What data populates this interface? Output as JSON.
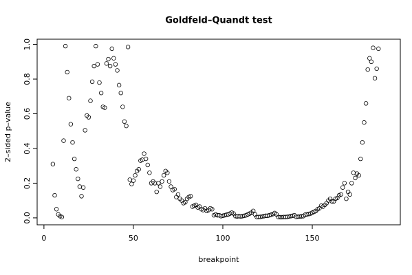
{
  "chart_data": {
    "type": "scatter",
    "title": "Goldfeld–Quandt test",
    "xlabel": "breakpoint",
    "ylabel": "2–sided p–value",
    "x": [
      5,
      6,
      7,
      8,
      9,
      10,
      11,
      12,
      13,
      14,
      15,
      16,
      17,
      18,
      19,
      20,
      21,
      22,
      23,
      24,
      25,
      26,
      27,
      28,
      29,
      30,
      31,
      32,
      33,
      34,
      35,
      36,
      37,
      38,
      39,
      40,
      41,
      42,
      43,
      44,
      45,
      46,
      47,
      48,
      49,
      50,
      51,
      52,
      53,
      54,
      55,
      56,
      57,
      58,
      59,
      60,
      61,
      62,
      63,
      64,
      65,
      66,
      67,
      68,
      69,
      70,
      71,
      72,
      73,
      74,
      75,
      76,
      77,
      78,
      79,
      80,
      81,
      82,
      83,
      84,
      85,
      86,
      87,
      88,
      89,
      90,
      91,
      92,
      93,
      94,
      95,
      96,
      97,
      98,
      99,
      100,
      101,
      102,
      103,
      104,
      105,
      106,
      107,
      108,
      109,
      110,
      111,
      112,
      113,
      114,
      115,
      116,
      117,
      118,
      119,
      120,
      121,
      122,
      123,
      124,
      125,
      126,
      127,
      128,
      129,
      130,
      131,
      132,
      133,
      134,
      135,
      136,
      137,
      138,
      139,
      140,
      141,
      142,
      143,
      144,
      145,
      146,
      147,
      148,
      149,
      150,
      151,
      152,
      153,
      154,
      155,
      156,
      157,
      158,
      159,
      160,
      161,
      162,
      163,
      164,
      165,
      166,
      167,
      168,
      169,
      170,
      171,
      172,
      173,
      174,
      175,
      176,
      177,
      178,
      179,
      180,
      181,
      182,
      183,
      184,
      185,
      186,
      187
    ],
    "values": [
      0.31,
      0.13,
      0.05,
      0.02,
      0.01,
      0.005,
      0.445,
      0.99,
      0.84,
      0.69,
      0.54,
      0.435,
      0.34,
      0.28,
      0.225,
      0.18,
      0.125,
      0.175,
      0.505,
      0.59,
      0.58,
      0.675,
      0.785,
      0.875,
      0.99,
      0.885,
      0.78,
      0.72,
      0.64,
      0.635,
      0.89,
      0.915,
      0.875,
      0.975,
      0.92,
      0.885,
      0.85,
      0.765,
      0.72,
      0.64,
      0.555,
      0.53,
      0.985,
      0.22,
      0.195,
      0.215,
      0.245,
      0.27,
      0.28,
      0.33,
      0.335,
      0.37,
      0.34,
      0.305,
      0.26,
      0.2,
      0.21,
      0.2,
      0.15,
      0.2,
      0.18,
      0.21,
      0.245,
      0.27,
      0.26,
      0.21,
      0.18,
      0.16,
      0.165,
      0.12,
      0.135,
      0.11,
      0.1,
      0.085,
      0.09,
      0.11,
      0.12,
      0.125,
      0.065,
      0.07,
      0.075,
      0.06,
      0.065,
      0.05,
      0.045,
      0.055,
      0.04,
      0.045,
      0.055,
      0.05,
      0.015,
      0.02,
      0.015,
      0.015,
      0.01,
      0.012,
      0.015,
      0.018,
      0.02,
      0.025,
      0.03,
      0.025,
      0.01,
      0.008,
      0.01,
      0.008,
      0.01,
      0.012,
      0.015,
      0.02,
      0.025,
      0.03,
      0.04,
      0.02,
      0.005,
      0.005,
      0.006,
      0.008,
      0.01,
      0.012,
      0.012,
      0.015,
      0.018,
      0.022,
      0.028,
      0.02,
      0.005,
      0.004,
      0.004,
      0.005,
      0.005,
      0.006,
      0.008,
      0.01,
      0.012,
      0.015,
      0.006,
      0.007,
      0.008,
      0.009,
      0.01,
      0.018,
      0.02,
      0.022,
      0.025,
      0.03,
      0.035,
      0.04,
      0.05,
      0.055,
      0.07,
      0.065,
      0.075,
      0.085,
      0.1,
      0.11,
      0.095,
      0.095,
      0.11,
      0.115,
      0.13,
      0.135,
      0.175,
      0.2,
      0.11,
      0.15,
      0.135,
      0.2,
      0.26,
      0.23,
      0.255,
      0.245,
      0.34,
      0.435,
      0.55,
      0.66,
      0.855,
      0.92,
      0.9,
      0.98,
      0.805,
      0.86,
      0.975
    ],
    "color": "#000000",
    "xlim": [
      -3.8,
      199.2
    ],
    "xticks": [
      0,
      50,
      100,
      150
    ],
    "ylim": [
      -0.04,
      1.03
    ],
    "yticks": [
      {
        "value": 0,
        "label": "0.0"
      },
      {
        "value": 0.2,
        "label": "0.2"
      },
      {
        "value": 0.4,
        "label": "0.4"
      },
      {
        "value": 0.6,
        "label": "0.6"
      },
      {
        "value": 0.8,
        "label": "0.8"
      },
      {
        "value": 1,
        "label": "1.0"
      }
    ]
  }
}
